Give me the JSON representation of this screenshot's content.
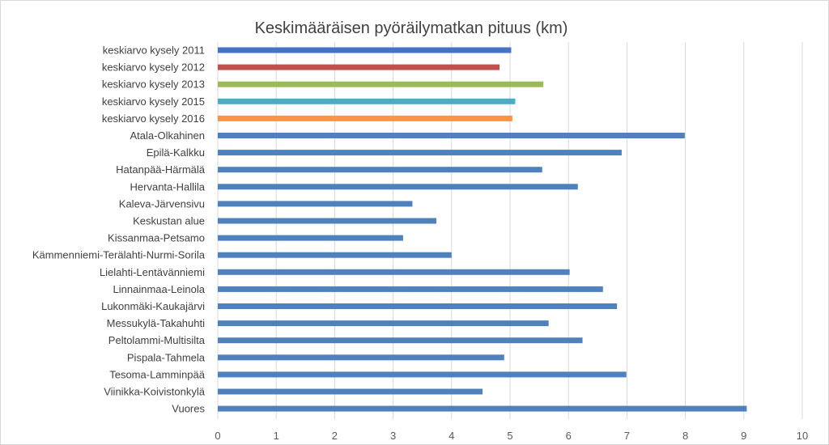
{
  "chart_data": {
    "type": "bar",
    "orientation": "horizontal",
    "title": "Keskimääräisen pyöräilymatkan pituus (km)",
    "xlabel": "",
    "ylabel": "",
    "xlim": [
      0,
      10
    ],
    "xticks": [
      "0",
      "1",
      "2",
      "3",
      "4",
      "5",
      "6",
      "7",
      "8",
      "9",
      "10"
    ],
    "grid": true,
    "legend": "none",
    "categories": [
      "keskiarvo kysely 2011",
      "keskiarvo kysely 2012",
      "keskiarvo kysely 2013",
      "keskiarvo kysely 2015",
      "keskiarvo kysely 2016",
      "Atala-Olkahinen",
      "Epilä-Kalkku",
      "Hatanpää-Härmälä",
      "Hervanta-Hallila",
      "Kaleva-Järvensivu",
      "Keskustan alue",
      "Kissanmaa-Petsamo",
      "Kämmenniemi-Terälahti-Nurmi-Sorila",
      "Lielahti-Lentävänniemi",
      "Linnainmaa-Leinola",
      "Lukonmäki-Kaukajärvi",
      "Messukylä-Takahuhti",
      "Peltolammi-Multisilta",
      "Pispala-Tahmela",
      "Tesoma-Lamminpää",
      "Viinikka-Koivistonkylä",
      "Vuores"
    ],
    "values": [
      5.02,
      4.82,
      5.57,
      5.09,
      5.04,
      7.99,
      6.91,
      5.55,
      6.16,
      3.33,
      3.74,
      3.17,
      4.0,
      6.02,
      6.59,
      6.83,
      5.66,
      6.24,
      4.9,
      6.99,
      4.53,
      9.05
    ],
    "colors": [
      "#4472c4",
      "#c0504d",
      "#9bbb59",
      "#4bacc6",
      "#f79646",
      "#4f81bd",
      "#4f81bd",
      "#4f81bd",
      "#4f81bd",
      "#4f81bd",
      "#4f81bd",
      "#4f81bd",
      "#4f81bd",
      "#4f81bd",
      "#4f81bd",
      "#4f81bd",
      "#4f81bd",
      "#4f81bd",
      "#4f81bd",
      "#4f81bd",
      "#4f81bd",
      "#4f81bd"
    ]
  }
}
